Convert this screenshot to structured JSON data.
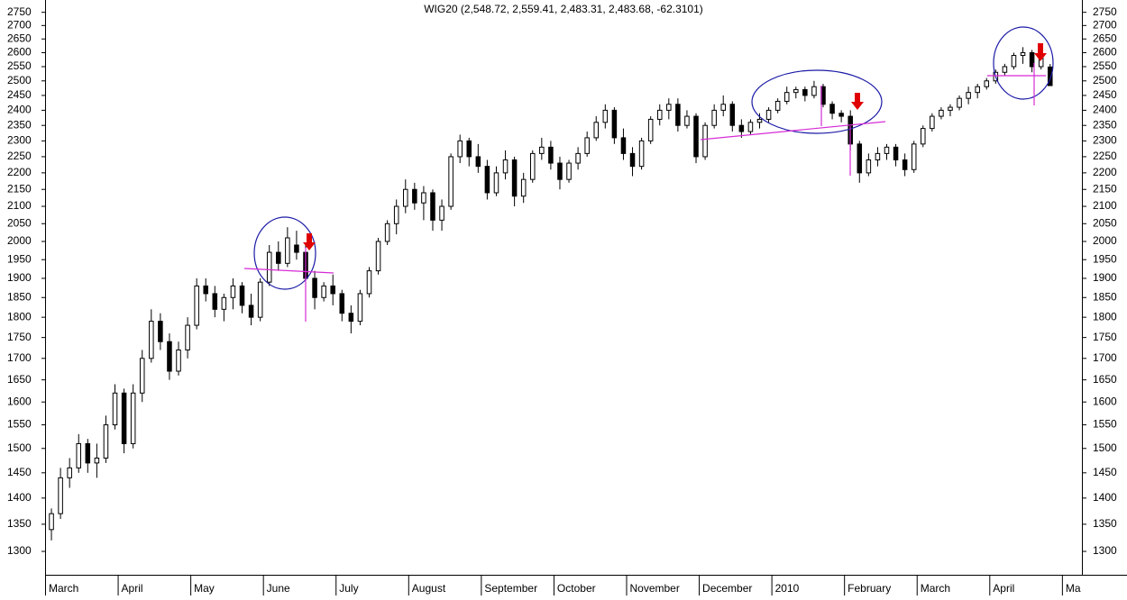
{
  "chart_data": {
    "type": "candlestick",
    "title": "WIG20 (2,548.72, 2,559.41, 2,483.31, 2,483.68, -62.3101)",
    "log": true,
    "up_color": "#ffffff",
    "down_color": "#000000",
    "categories": [
      "March",
      null,
      null,
      null,
      null,
      null,
      null,
      null,
      "April",
      null,
      null,
      null,
      null,
      null,
      null,
      null,
      "May",
      null,
      null,
      null,
      null,
      null,
      null,
      null,
      "June",
      null,
      null,
      null,
      null,
      null,
      null,
      null,
      "July",
      null,
      null,
      null,
      null,
      null,
      null,
      null,
      "August",
      null,
      null,
      null,
      null,
      null,
      null,
      null,
      "September",
      null,
      null,
      null,
      null,
      null,
      null,
      null,
      "October",
      null,
      null,
      null,
      null,
      null,
      null,
      null,
      "November",
      null,
      null,
      null,
      null,
      null,
      null,
      null,
      "December",
      null,
      null,
      null,
      null,
      null,
      null,
      null,
      "2010",
      null,
      null,
      null,
      null,
      null,
      null,
      null,
      "February",
      null,
      null,
      null,
      null,
      null,
      null,
      null,
      "March",
      null,
      null,
      null,
      null,
      null,
      null,
      null,
      "April",
      null,
      null,
      null,
      null,
      null,
      null,
      null,
      "Ma",
      null
    ],
    "open": [
      1340,
      1370,
      1440,
      1460,
      1510,
      1470,
      1480,
      1550,
      1620,
      1510,
      1620,
      1700,
      1790,
      1740,
      1670,
      1720,
      1780,
      1880,
      1860,
      1820,
      1850,
      1880,
      1830,
      1800,
      1890,
      1970,
      1940,
      1990,
      1970,
      1900,
      1850,
      1880,
      1860,
      1810,
      1790,
      1860,
      1920,
      2000,
      2050,
      2100,
      2150,
      2110,
      2140,
      2060,
      2100,
      2250,
      2300,
      2250,
      2220,
      2140,
      2200,
      2240,
      2130,
      2180,
      2260,
      2280,
      2230,
      2180,
      2230,
      2260,
      2310,
      2360,
      2400,
      2310,
      2260,
      2220,
      2300,
      2370,
      2400,
      2420,
      2350,
      2380,
      2250,
      2350,
      2400,
      2420,
      2350,
      2330,
      2360,
      2370,
      2400,
      2430,
      2460,
      2470,
      2450,
      2480,
      2420,
      2390,
      2380,
      2290,
      2200,
      2240,
      2260,
      2280,
      2240,
      2210,
      2290,
      2340,
      2380,
      2400,
      2410,
      2440,
      2460,
      2480,
      2500,
      2530,
      2550,
      2590,
      2600,
      2550,
      2548.72,
      null,
      null,
      null
    ],
    "high": [
      1380,
      1460,
      1480,
      1530,
      1520,
      1510,
      1570,
      1640,
      1630,
      1640,
      1720,
      1820,
      1810,
      1760,
      1740,
      1800,
      1900,
      1900,
      1880,
      1860,
      1900,
      1890,
      1860,
      1900,
      1990,
      2000,
      2040,
      2030,
      1990,
      1920,
      1890,
      1910,
      1870,
      1830,
      1870,
      1930,
      2010,
      2060,
      2120,
      2180,
      2170,
      2160,
      2150,
      2120,
      2260,
      2320,
      2310,
      2290,
      2240,
      2220,
      2270,
      2250,
      2200,
      2270,
      2310,
      2300,
      2250,
      2240,
      2280,
      2330,
      2380,
      2420,
      2410,
      2340,
      2280,
      2310,
      2380,
      2420,
      2440,
      2440,
      2400,
      2390,
      2360,
      2420,
      2450,
      2430,
      2370,
      2370,
      2390,
      2410,
      2440,
      2480,
      2480,
      2480,
      2500,
      2490,
      2430,
      2400,
      2400,
      2300,
      2260,
      2280,
      2290,
      2290,
      2260,
      2300,
      2350,
      2390,
      2410,
      2420,
      2450,
      2480,
      2490,
      2510,
      2540,
      2560,
      2600,
      2620,
      2610,
      2590,
      2559.41,
      null,
      null,
      null
    ],
    "low": [
      1320,
      1360,
      1420,
      1450,
      1450,
      1440,
      1470,
      1540,
      1490,
      1500,
      1600,
      1690,
      1720,
      1650,
      1660,
      1700,
      1770,
      1840,
      1800,
      1790,
      1820,
      1810,
      1780,
      1790,
      1880,
      1920,
      1930,
      1950,
      1880,
      1820,
      1840,
      1830,
      1790,
      1760,
      1780,
      1850,
      1910,
      1990,
      2020,
      2080,
      2090,
      2060,
      2030,
      2030,
      2090,
      2230,
      2220,
      2200,
      2120,
      2130,
      2180,
      2100,
      2110,
      2170,
      2240,
      2210,
      2150,
      2170,
      2210,
      2250,
      2300,
      2340,
      2290,
      2240,
      2190,
      2210,
      2290,
      2350,
      2370,
      2330,
      2340,
      2230,
      2240,
      2340,
      2380,
      2330,
      2310,
      2320,
      2340,
      2360,
      2390,
      2420,
      2440,
      2430,
      2440,
      2410,
      2370,
      2360,
      2270,
      2170,
      2190,
      2220,
      2240,
      2220,
      2190,
      2200,
      2280,
      2330,
      2370,
      2380,
      2400,
      2420,
      2440,
      2470,
      2490,
      2520,
      2540,
      2560,
      2530,
      2540,
      2483.31,
      null,
      null,
      null
    ],
    "close": [
      1370,
      1440,
      1460,
      1510,
      1470,
      1480,
      1550,
      1620,
      1510,
      1620,
      1700,
      1790,
      1740,
      1670,
      1720,
      1780,
      1880,
      1860,
      1820,
      1850,
      1880,
      1830,
      1800,
      1890,
      1970,
      1940,
      2010,
      1970,
      1900,
      1850,
      1880,
      1860,
      1810,
      1790,
      1860,
      1920,
      2000,
      2050,
      2100,
      2150,
      2110,
      2140,
      2060,
      2100,
      2250,
      2300,
      2250,
      2220,
      2140,
      2200,
      2240,
      2130,
      2180,
      2260,
      2280,
      2230,
      2180,
      2230,
      2260,
      2310,
      2360,
      2400,
      2310,
      2260,
      2220,
      2300,
      2370,
      2400,
      2420,
      2350,
      2380,
      2250,
      2350,
      2400,
      2420,
      2350,
      2330,
      2360,
      2370,
      2400,
      2430,
      2460,
      2470,
      2450,
      2480,
      2420,
      2390,
      2380,
      2290,
      2200,
      2240,
      2260,
      2280,
      2240,
      2210,
      2290,
      2340,
      2380,
      2400,
      2410,
      2440,
      2460,
      2480,
      2500,
      2530,
      2550,
      2590,
      2600,
      2550,
      2580,
      2483.68,
      null,
      null,
      null
    ],
    "ylim": [
      1260,
      2780
    ],
    "yticks": [
      1300,
      1350,
      1400,
      1450,
      1500,
      1550,
      1600,
      1650,
      1700,
      1750,
      1800,
      1850,
      1900,
      1950,
      2000,
      2050,
      2100,
      2150,
      2200,
      2250,
      2300,
      2350,
      2400,
      2450,
      2500,
      2550,
      2600,
      2650,
      2700,
      2750
    ]
  }
}
